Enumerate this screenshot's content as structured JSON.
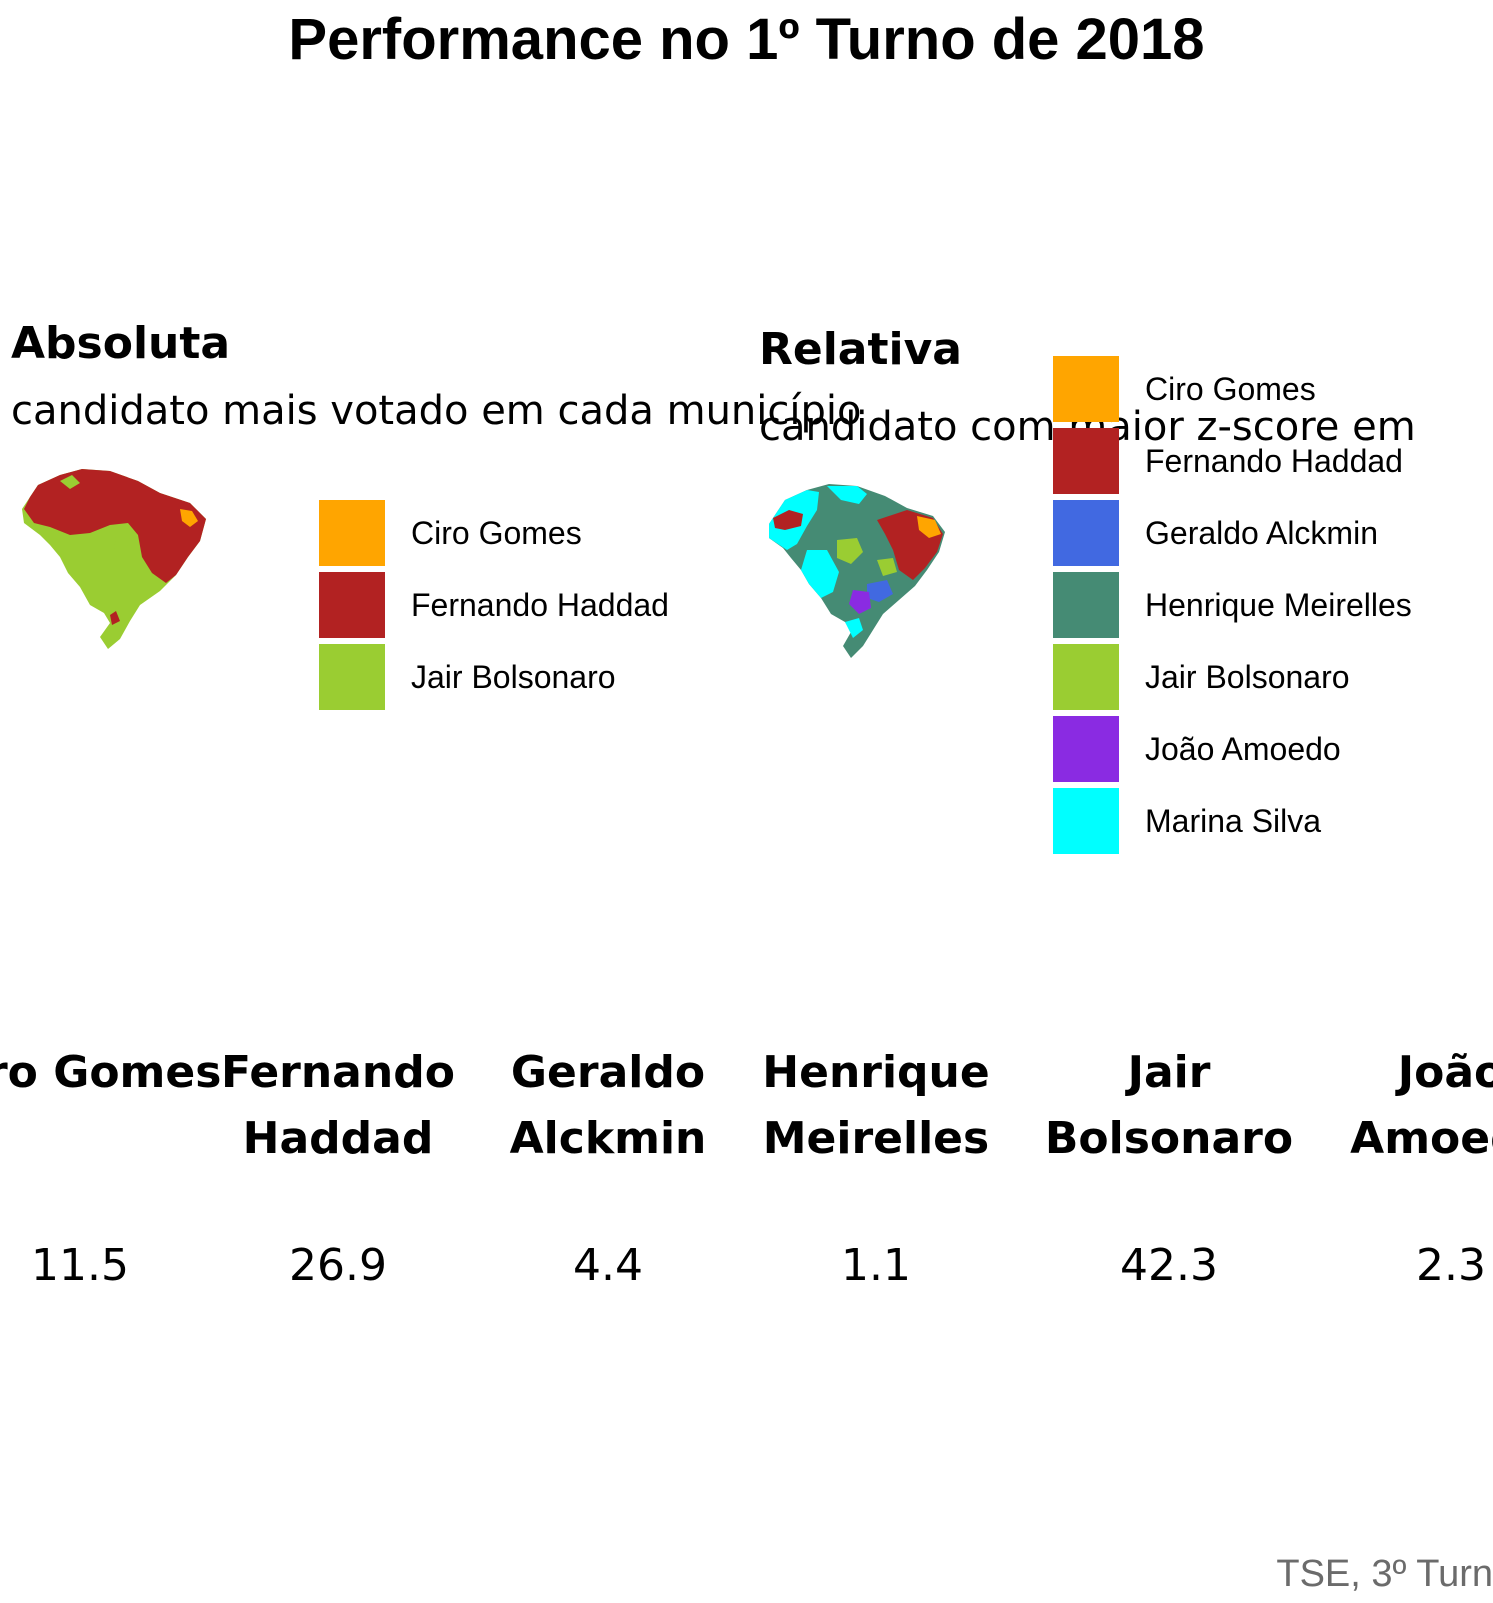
{
  "title": "Performance no 1º Turno de 2018",
  "caption": "TSE, 3º Turn",
  "colors": {
    "Ciro Gomes": "#FFA500",
    "Fernando Haddad": "#B22222",
    "Geraldo Alckmin": "#4169E1",
    "Henrique Meirelles": "#458B74",
    "Jair Bolsonaro": "#9ACD32",
    "João Amoedo": "#8A2BE2",
    "Marina Silva": "#00FFFF"
  },
  "absolute_panel": {
    "heading": "Absoluta",
    "subtitle": "candidato mais votado em cada município",
    "legend": [
      {
        "label": "Ciro Gomes",
        "color": "#FFA500"
      },
      {
        "label": "Fernando Haddad",
        "color": "#B22222"
      },
      {
        "label": "Jair Bolsonaro",
        "color": "#9ACD32"
      }
    ]
  },
  "relative_panel": {
    "heading": "Relativa",
    "subtitle": "candidato com maior z-score em",
    "legend": [
      {
        "label": "Ciro Gomes",
        "color": "#FFA500"
      },
      {
        "label": "Fernando Haddad",
        "color": "#B22222"
      },
      {
        "label": "Geraldo Alckmin",
        "color": "#4169E1"
      },
      {
        "label": "Henrique Meirelles",
        "color": "#458B74"
      },
      {
        "label": "Jair Bolsonaro",
        "color": "#9ACD32"
      },
      {
        "label": "João Amoedo",
        "color": "#8A2BE2"
      },
      {
        "label": "Marina Silva",
        "color": "#00FFFF"
      }
    ]
  },
  "results_table": [
    {
      "name": "Ciro Gomes",
      "value": "11.5"
    },
    {
      "name": "Fernando Haddad",
      "value": "26.9"
    },
    {
      "name": "Geraldo Alckmin",
      "value": "4.4"
    },
    {
      "name": "Henrique Meirelles",
      "value": "1.1"
    },
    {
      "name": "Jair Bolsonaro",
      "value": "42.3"
    },
    {
      "name": "João Amoedo",
      "value": "2.3"
    }
  ]
}
